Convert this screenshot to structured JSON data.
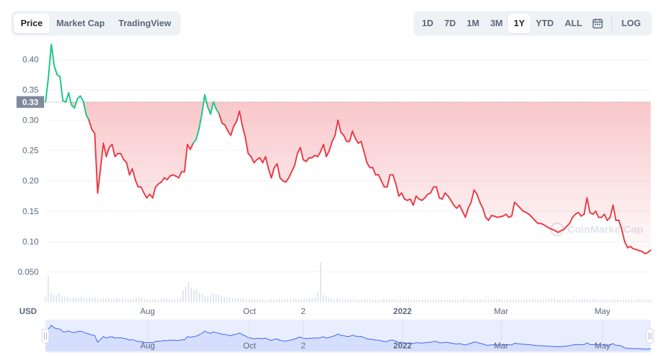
{
  "view_tabs": [
    {
      "label": "Price",
      "active": true
    },
    {
      "label": "Market Cap",
      "active": false
    },
    {
      "label": "TradingView",
      "active": false
    }
  ],
  "range_tabs": [
    {
      "label": "1D",
      "active": false
    },
    {
      "label": "7D",
      "active": false
    },
    {
      "label": "1M",
      "active": false
    },
    {
      "label": "3M",
      "active": false
    },
    {
      "label": "1Y",
      "active": true
    },
    {
      "label": "YTD",
      "active": false
    },
    {
      "label": "ALL",
      "active": false
    }
  ],
  "calendar_icon": "calendar-icon",
  "log_label": "LOG",
  "watermark": "CoinMarketCap",
  "colors": {
    "up": "#16c784",
    "down": "#ea3943",
    "navigator_line": "#3861fb",
    "navigator_fill": "#e9eefe"
  },
  "chart_data": {
    "type": "line",
    "currency_label": "USD",
    "y_ticks": [
      "0.40",
      "0.35",
      "0.30",
      "0.25",
      "0.20",
      "0.15",
      "0.10",
      "0.050"
    ],
    "ylim": [
      0.0,
      0.43
    ],
    "x_ticks": [
      "Aug",
      "Oct",
      "2",
      "2022",
      "Mar",
      "May"
    ],
    "bold_x_ticks": [
      "2022"
    ],
    "reference_price": 0.33,
    "reference_label": "0.33",
    "grid": true,
    "series": [
      {
        "values": [
          0.33,
          0.37,
          0.425,
          0.39,
          0.375,
          0.372,
          0.332,
          0.33,
          0.345,
          0.325,
          0.32,
          0.335,
          0.34,
          0.332,
          0.31,
          0.3,
          0.285,
          0.278,
          0.18,
          0.22,
          0.262,
          0.24,
          0.255,
          0.26,
          0.24,
          0.245,
          0.245,
          0.235,
          0.23,
          0.21,
          0.22,
          0.202,
          0.19,
          0.19,
          0.18,
          0.172,
          0.178,
          0.172,
          0.19,
          0.195,
          0.198,
          0.205,
          0.202,
          0.208,
          0.21,
          0.208,
          0.205,
          0.215,
          0.215,
          0.26,
          0.252,
          0.262,
          0.268,
          0.285,
          0.31,
          0.342,
          0.322,
          0.31,
          0.33,
          0.318,
          0.31,
          0.295,
          0.292,
          0.282,
          0.275,
          0.29,
          0.298,
          0.315,
          0.29,
          0.272,
          0.245,
          0.24,
          0.23,
          0.235,
          0.238,
          0.23,
          0.24,
          0.22,
          0.205,
          0.222,
          0.228,
          0.205,
          0.2,
          0.198,
          0.205,
          0.215,
          0.225,
          0.245,
          0.255,
          0.235,
          0.232,
          0.238,
          0.238,
          0.242,
          0.24,
          0.248,
          0.26,
          0.24,
          0.25,
          0.265,
          0.275,
          0.3,
          0.28,
          0.275,
          0.265,
          0.265,
          0.282,
          0.27,
          0.262,
          0.265,
          0.248,
          0.23,
          0.222,
          0.222,
          0.21,
          0.21,
          0.2,
          0.19,
          0.19,
          0.21,
          0.21,
          0.195,
          0.175,
          0.18,
          0.17,
          0.168,
          0.17,
          0.16,
          0.175,
          0.17,
          0.168,
          0.172,
          0.178,
          0.18,
          0.19,
          0.19,
          0.172,
          0.17,
          0.18,
          0.175,
          0.168,
          0.16,
          0.155,
          0.16,
          0.15,
          0.14,
          0.155,
          0.165,
          0.185,
          0.178,
          0.165,
          0.155,
          0.14,
          0.135,
          0.143,
          0.142,
          0.14,
          0.141,
          0.142,
          0.145,
          0.14,
          0.142,
          0.165,
          0.16,
          0.155,
          0.15,
          0.148,
          0.145,
          0.14,
          0.135,
          0.13,
          0.13,
          0.128,
          0.125,
          0.122,
          0.12,
          0.118,
          0.115,
          0.118,
          0.12,
          0.125,
          0.13,
          0.14,
          0.145,
          0.148,
          0.142,
          0.145,
          0.172,
          0.148,
          0.145,
          0.15,
          0.14,
          0.14,
          0.145,
          0.135,
          0.14,
          0.16,
          0.135,
          0.135,
          0.12,
          0.1,
          0.09,
          0.092,
          0.088,
          0.087,
          0.085,
          0.084,
          0.08,
          0.082,
          0.086
        ],
        "up_until_index": 15,
        "up_resume_index": 51,
        "up_resume_until_index": 60
      }
    ],
    "volume": [
      7,
      33,
      12,
      10,
      9,
      12,
      7,
      8,
      7,
      5,
      6,
      6,
      5,
      7,
      5,
      5,
      6,
      5,
      6,
      5,
      4,
      5,
      5,
      6,
      4,
      4,
      5,
      4,
      5,
      4,
      4,
      4,
      4,
      5,
      6,
      5,
      4,
      4,
      3,
      3,
      4,
      3,
      4,
      5,
      4,
      4,
      3,
      3,
      4,
      6,
      15,
      20,
      25,
      18,
      16,
      15,
      12,
      10,
      8,
      7,
      9,
      11,
      10,
      9,
      8,
      6,
      6,
      6,
      5,
      5,
      5,
      4,
      5,
      4,
      4,
      4,
      4,
      4,
      4,
      3,
      3,
      3,
      4,
      3,
      3,
      4,
      3,
      4,
      4,
      5,
      4,
      4,
      4,
      4,
      4,
      4,
      5,
      5,
      6,
      14,
      50,
      9,
      8,
      6,
      5,
      4,
      5,
      4,
      4,
      4,
      4,
      4,
      3,
      3,
      3,
      3,
      4,
      3,
      4,
      3,
      3,
      3,
      3,
      4,
      4,
      3,
      3,
      3,
      3,
      3,
      3,
      3,
      3,
      3,
      3,
      3,
      3,
      3,
      3,
      3,
      3,
      3,
      3,
      3,
      3,
      3,
      3,
      3,
      3,
      3,
      3,
      3,
      4,
      3,
      3,
      3,
      3,
      3,
      3,
      3,
      3,
      3,
      3,
      3,
      3,
      4,
      3,
      3,
      4,
      3,
      3,
      3,
      3,
      3,
      3,
      3,
      3,
      4,
      3,
      3,
      3,
      3,
      4,
      4,
      4,
      4,
      3,
      3,
      3,
      4,
      3,
      3,
      3,
      3,
      3,
      4,
      4,
      4,
      4,
      4,
      4,
      3,
      3,
      4,
      3,
      3,
      3,
      3,
      3,
      3,
      3,
      3,
      3,
      3,
      3,
      3,
      3,
      3,
      3,
      3,
      3
    ]
  }
}
